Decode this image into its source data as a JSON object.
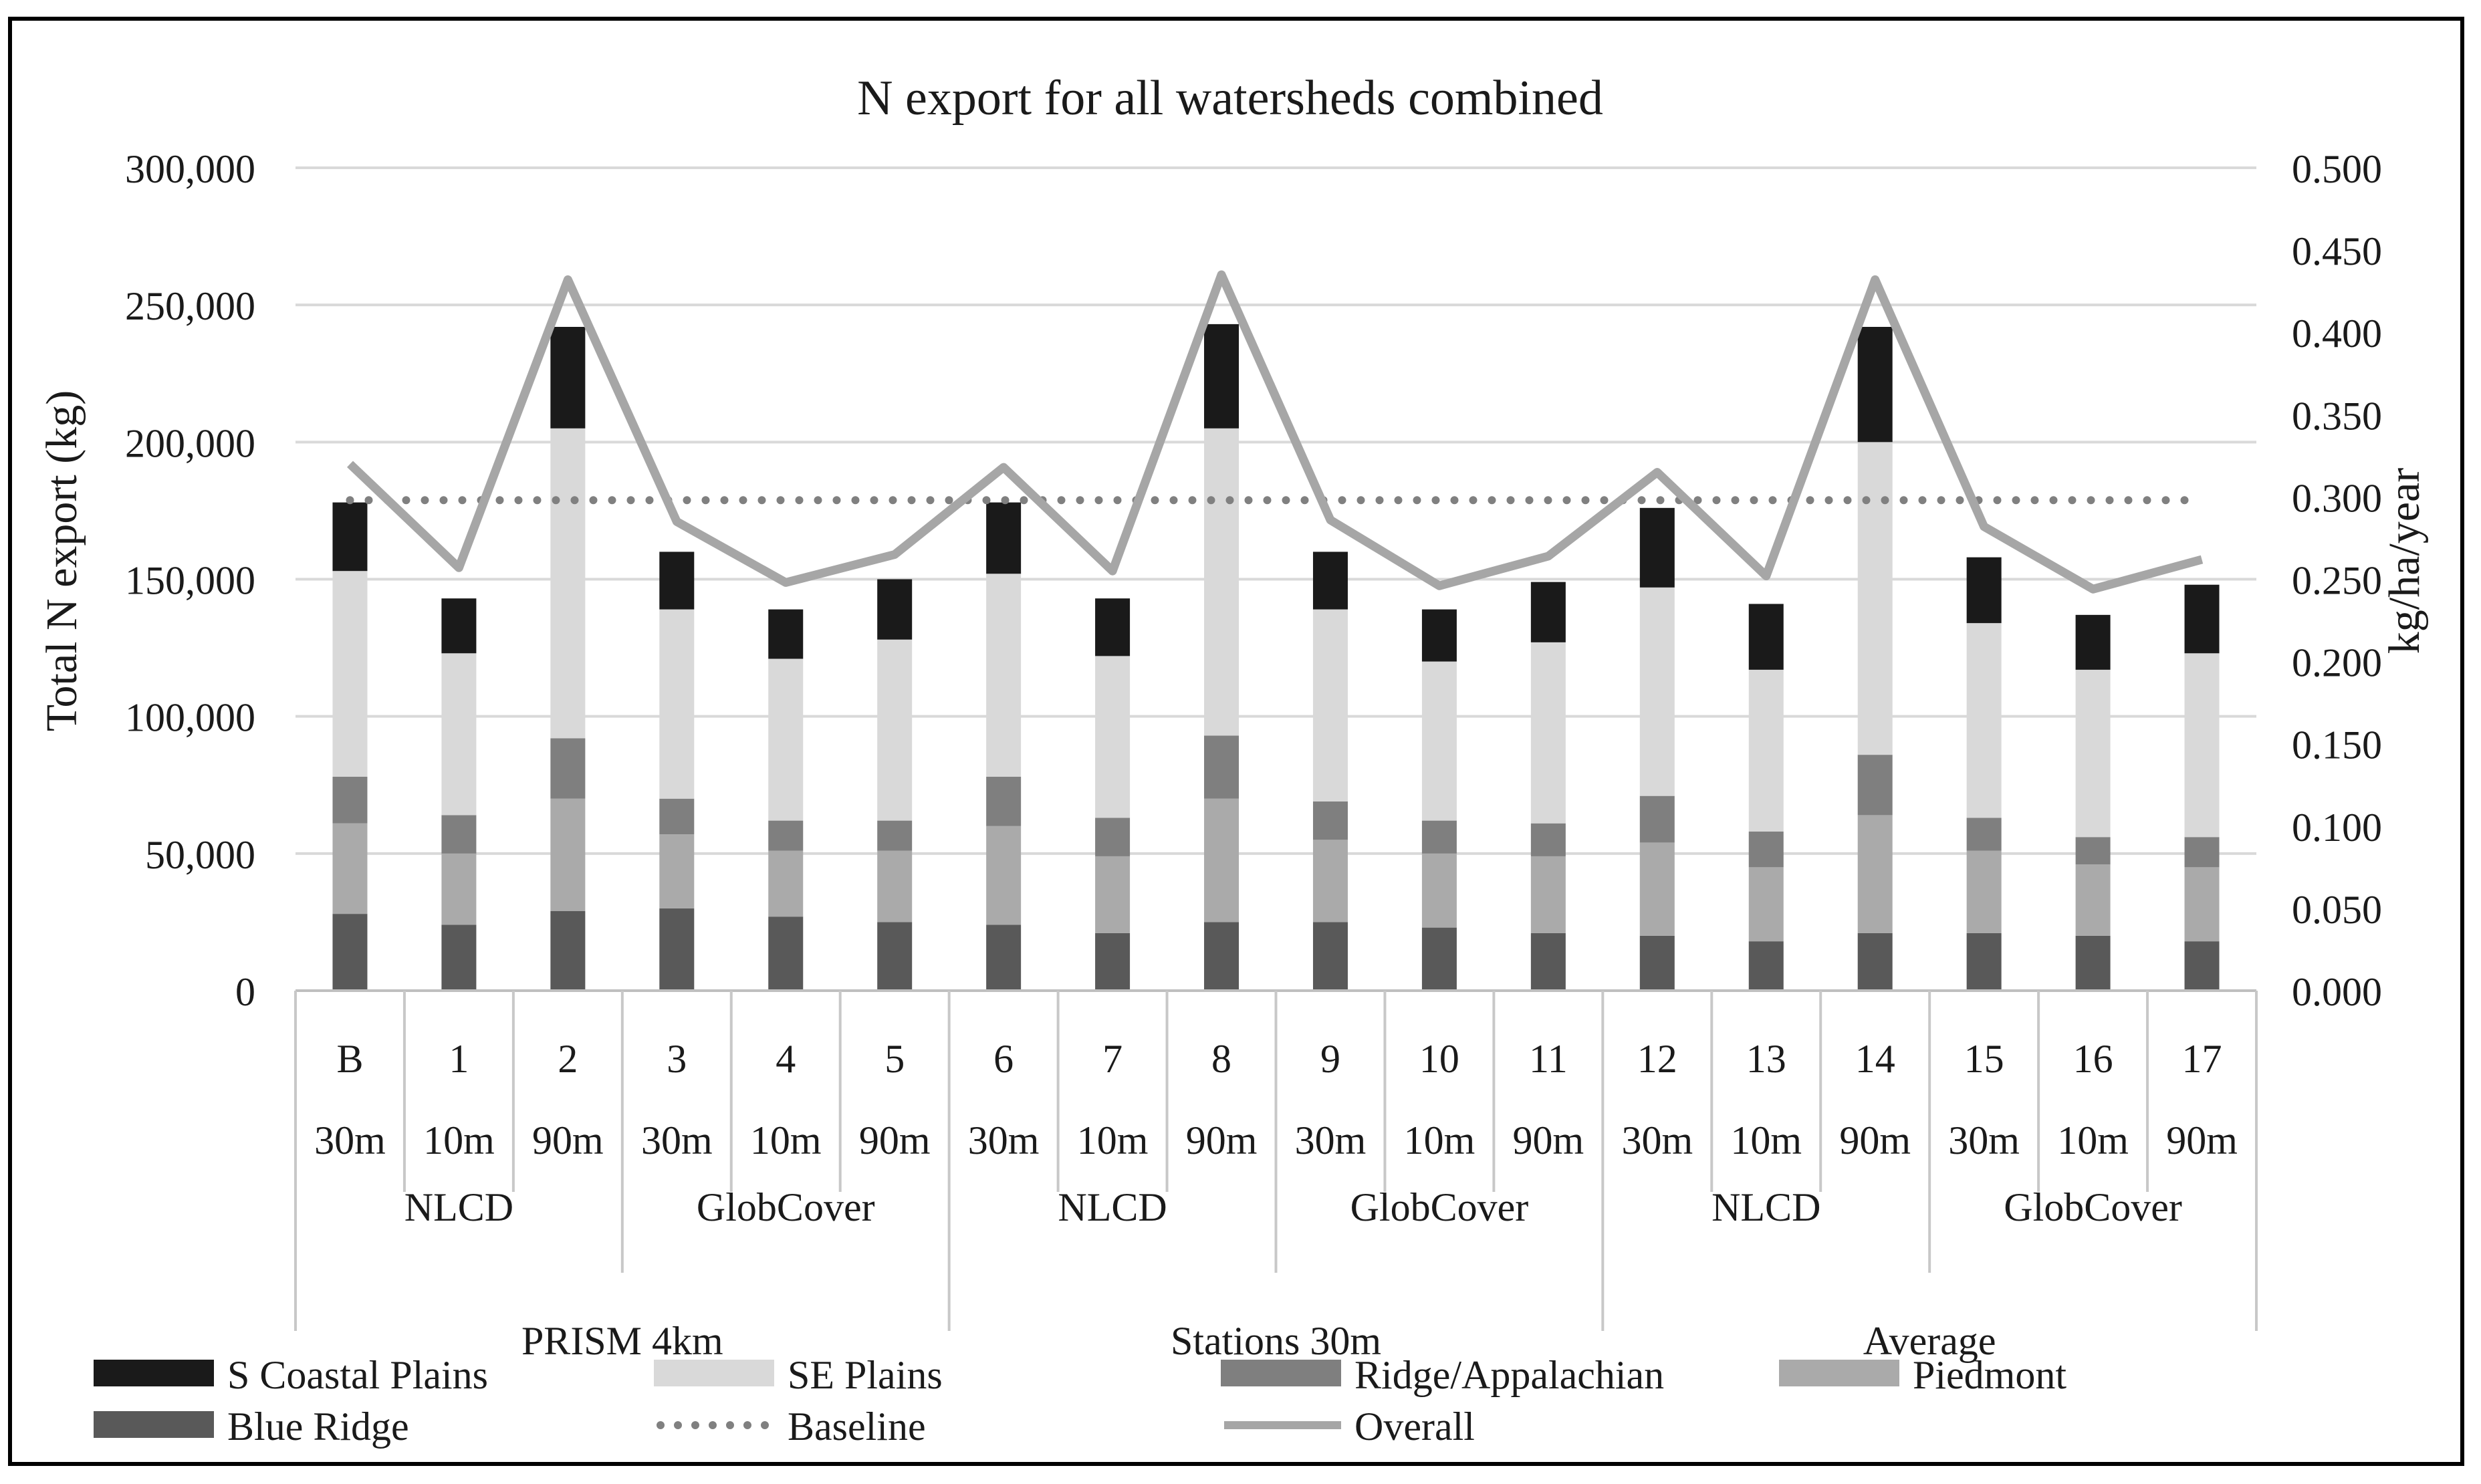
{
  "chart_data": {
    "type": "bar",
    "stacked": true,
    "title": "N export for all watersheds combined",
    "ylabel": "Total N export (kg)",
    "y2label": "kg/ha/year",
    "ylim": [
      0,
      300000
    ],
    "y2lim": [
      0,
      0.5
    ],
    "y_ticks": [
      "0",
      "50,000",
      "100,000",
      "150,000",
      "200,000",
      "250,000",
      "300,000"
    ],
    "y2_ticks": [
      "0.000",
      "0.050",
      "0.100",
      "0.150",
      "0.200",
      "0.250",
      "0.300",
      "0.350",
      "0.400",
      "0.450",
      "0.500"
    ],
    "grid": true,
    "legend_position": "bottom",
    "categories": [
      "B",
      "1",
      "2",
      "3",
      "4",
      "5",
      "6",
      "7",
      "8",
      "9",
      "10",
      "11",
      "12",
      "13",
      "14",
      "15",
      "16",
      "17"
    ],
    "resolutions": [
      "30m",
      "10m",
      "90m",
      "30m",
      "10m",
      "90m",
      "30m",
      "10m",
      "90m",
      "30m",
      "10m",
      "90m",
      "30m",
      "10m",
      "90m",
      "30m",
      "10m",
      "90m"
    ],
    "land_cover_groups": [
      {
        "label": "NLCD",
        "span": 3
      },
      {
        "label": "GlobCover",
        "span": 3
      },
      {
        "label": "NLCD",
        "span": 3
      },
      {
        "label": "GlobCover",
        "span": 3
      },
      {
        "label": "NLCD",
        "span": 3
      },
      {
        "label": "GlobCover",
        "span": 3
      }
    ],
    "climate_groups": [
      {
        "label": "PRISM 4km",
        "span": 6
      },
      {
        "label": "Stations 30m",
        "span": 6
      },
      {
        "label": "Average",
        "span": 6
      }
    ],
    "series": [
      {
        "name": "Blue Ridge",
        "color": "#595959",
        "values": [
          28000,
          24000,
          29000,
          30000,
          27000,
          25000,
          24000,
          21000,
          25000,
          25000,
          23000,
          21000,
          20000,
          18000,
          21000,
          21000,
          20000,
          18000
        ]
      },
      {
        "name": "Piedmont",
        "color": "#aaaaaa",
        "values": [
          33000,
          26000,
          41000,
          27000,
          24000,
          26000,
          36000,
          28000,
          45000,
          30000,
          27000,
          28000,
          34000,
          27000,
          43000,
          30000,
          26000,
          27000
        ]
      },
      {
        "name": "Ridge/Appalachian",
        "color": "#7f7f7f",
        "values": [
          17000,
          14000,
          22000,
          13000,
          11000,
          11000,
          18000,
          14000,
          23000,
          14000,
          12000,
          12000,
          17000,
          13000,
          22000,
          12000,
          10000,
          11000
        ]
      },
      {
        "name": "SE Plains",
        "color": "#d9d9d9",
        "values": [
          75000,
          59000,
          113000,
          69000,
          59000,
          66000,
          74000,
          59000,
          112000,
          70000,
          58000,
          66000,
          76000,
          59000,
          114000,
          71000,
          61000,
          67000
        ]
      },
      {
        "name": "S Coastal Plains",
        "color": "#1a1a1a",
        "values": [
          25000,
          20000,
          37000,
          21000,
          18000,
          22000,
          26000,
          21000,
          38000,
          21000,
          19000,
          22000,
          29000,
          24000,
          42000,
          24000,
          20000,
          25000
        ]
      }
    ],
    "lines": [
      {
        "name": "Baseline",
        "style": "dotted",
        "color": "#808080",
        "axis": "right",
        "values": [
          0.298,
          0.298,
          0.298,
          0.298,
          0.298,
          0.298,
          0.298,
          0.298,
          0.298,
          0.298,
          0.298,
          0.298,
          0.298,
          0.298,
          0.298,
          0.298,
          0.298,
          0.298
        ]
      },
      {
        "name": "Overall",
        "style": "solid",
        "color": "#a6a6a6",
        "axis": "right",
        "values": [
          0.32,
          0.257,
          0.432,
          0.285,
          0.248,
          0.265,
          0.318,
          0.255,
          0.435,
          0.286,
          0.246,
          0.264,
          0.315,
          0.252,
          0.432,
          0.282,
          0.244,
          0.262
        ]
      }
    ],
    "legend": [
      {
        "name": "S Coastal Plains",
        "kind": "bar",
        "color": "#1a1a1a"
      },
      {
        "name": "SE Plains",
        "kind": "bar",
        "color": "#d9d9d9"
      },
      {
        "name": "Ridge/Appalachian",
        "kind": "bar",
        "color": "#7f7f7f"
      },
      {
        "name": "Piedmont",
        "kind": "bar",
        "color": "#aaaaaa"
      },
      {
        "name": "Blue Ridge",
        "kind": "bar",
        "color": "#595959"
      },
      {
        "name": "Baseline",
        "kind": "dotted",
        "color": "#808080"
      },
      {
        "name": "Overall",
        "kind": "line",
        "color": "#a6a6a6"
      }
    ]
  }
}
